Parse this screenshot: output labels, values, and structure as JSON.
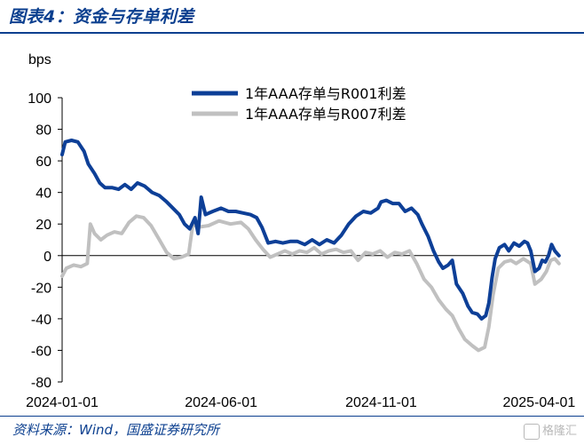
{
  "header": {
    "title": "图表4：资金与存单利差"
  },
  "footer": {
    "source": "资料来源：Wind，国盛证券研究所",
    "watermark": "格隆汇"
  },
  "chart_data": {
    "type": "line",
    "ylabel": "bps",
    "ylim": [
      -80,
      100
    ],
    "yticks": [
      -80,
      -60,
      -40,
      -20,
      0,
      20,
      40,
      60,
      80,
      100
    ],
    "yticks_labels": [
      "-80",
      "-60",
      "-40",
      "-20",
      "0",
      "20",
      "40",
      "60",
      "80",
      "100"
    ],
    "xticks": [
      "2024-01-01",
      "2024-06-01",
      "2024-11-01",
      "2025-04-01"
    ],
    "xlim": [
      "2024-01-01",
      "2025-04-10"
    ],
    "legend_position": "top-center",
    "series": [
      {
        "name": "1年AAA存单与R001利差",
        "color": "#0d3f97",
        "points": [
          [
            "2024-01-01",
            64
          ],
          [
            "2024-01-04",
            72
          ],
          [
            "2024-01-10",
            73
          ],
          [
            "2024-01-16",
            72
          ],
          [
            "2024-01-22",
            66
          ],
          [
            "2024-01-26",
            58
          ],
          [
            "2024-02-01",
            52
          ],
          [
            "2024-02-06",
            46
          ],
          [
            "2024-02-11",
            43
          ],
          [
            "2024-02-18",
            43
          ],
          [
            "2024-02-24",
            42
          ],
          [
            "2024-03-01",
            45
          ],
          [
            "2024-03-07",
            42
          ],
          [
            "2024-03-13",
            46
          ],
          [
            "2024-03-20",
            44
          ],
          [
            "2024-03-27",
            40
          ],
          [
            "2024-04-03",
            38
          ],
          [
            "2024-04-10",
            34
          ],
          [
            "2024-04-16",
            30
          ],
          [
            "2024-04-22",
            26
          ],
          [
            "2024-04-27",
            20
          ],
          [
            "2024-05-02",
            17
          ],
          [
            "2024-05-07",
            24
          ],
          [
            "2024-05-10",
            14
          ],
          [
            "2024-05-13",
            37
          ],
          [
            "2024-05-17",
            26
          ],
          [
            "2024-05-24",
            28
          ],
          [
            "2024-06-01",
            30
          ],
          [
            "2024-06-08",
            28
          ],
          [
            "2024-06-15",
            28
          ],
          [
            "2024-06-22",
            27
          ],
          [
            "2024-06-29",
            26
          ],
          [
            "2024-07-05",
            24
          ],
          [
            "2024-07-10",
            18
          ],
          [
            "2024-07-16",
            8
          ],
          [
            "2024-07-23",
            9
          ],
          [
            "2024-07-30",
            8
          ],
          [
            "2024-08-06",
            9
          ],
          [
            "2024-08-13",
            9
          ],
          [
            "2024-08-20",
            7
          ],
          [
            "2024-08-27",
            10
          ],
          [
            "2024-09-03",
            7
          ],
          [
            "2024-09-10",
            10
          ],
          [
            "2024-09-17",
            8
          ],
          [
            "2024-09-24",
            13
          ],
          [
            "2024-10-01",
            20
          ],
          [
            "2024-10-08",
            25
          ],
          [
            "2024-10-15",
            28
          ],
          [
            "2024-10-22",
            27
          ],
          [
            "2024-10-29",
            30
          ],
          [
            "2024-11-01",
            34
          ],
          [
            "2024-11-06",
            35
          ],
          [
            "2024-11-12",
            33
          ],
          [
            "2024-11-18",
            33
          ],
          [
            "2024-11-24",
            28
          ],
          [
            "2024-11-30",
            30
          ],
          [
            "2024-12-06",
            26
          ],
          [
            "2024-12-10",
            20
          ],
          [
            "2024-12-16",
            12
          ],
          [
            "2024-12-21",
            3
          ],
          [
            "2024-12-26",
            -4
          ],
          [
            "2024-12-30",
            -8
          ],
          [
            "2025-01-04",
            -6
          ],
          [
            "2025-01-08",
            -3
          ],
          [
            "2025-01-12",
            -18
          ],
          [
            "2025-01-18",
            -24
          ],
          [
            "2025-01-23",
            -32
          ],
          [
            "2025-01-27",
            -36
          ],
          [
            "2025-02-01",
            -37
          ],
          [
            "2025-02-05",
            -40
          ],
          [
            "2025-02-09",
            -38
          ],
          [
            "2025-02-12",
            -30
          ],
          [
            "2025-02-15",
            -14
          ],
          [
            "2025-02-18",
            -2
          ],
          [
            "2025-02-22",
            5
          ],
          [
            "2025-02-27",
            7
          ],
          [
            "2025-03-03",
            3
          ],
          [
            "2025-03-08",
            8
          ],
          [
            "2025-03-13",
            6
          ],
          [
            "2025-03-18",
            9
          ],
          [
            "2025-03-21",
            8
          ],
          [
            "2025-03-24",
            3
          ],
          [
            "2025-03-28",
            -10
          ],
          [
            "2025-04-01",
            -8
          ],
          [
            "2025-04-04",
            -3
          ],
          [
            "2025-04-07",
            -4
          ],
          [
            "2025-04-10",
            0
          ],
          [
            "2025-04-13",
            7
          ],
          [
            "2025-04-16",
            3
          ],
          [
            "2025-04-20",
            0
          ]
        ]
      },
      {
        "name": "1年AAA存单与R007利差",
        "color": "#c0c0c0",
        "points": [
          [
            "2024-01-01",
            -13
          ],
          [
            "2024-01-05",
            -8
          ],
          [
            "2024-01-12",
            -6
          ],
          [
            "2024-01-19",
            -7
          ],
          [
            "2024-01-25",
            -5
          ],
          [
            "2024-01-28",
            20
          ],
          [
            "2024-02-01",
            14
          ],
          [
            "2024-02-07",
            10
          ],
          [
            "2024-02-13",
            13
          ],
          [
            "2024-02-20",
            15
          ],
          [
            "2024-02-27",
            14
          ],
          [
            "2024-03-05",
            21
          ],
          [
            "2024-03-12",
            25
          ],
          [
            "2024-03-19",
            24
          ],
          [
            "2024-03-26",
            19
          ],
          [
            "2024-04-03",
            10
          ],
          [
            "2024-04-10",
            2
          ],
          [
            "2024-04-17",
            -2
          ],
          [
            "2024-04-24",
            -1
          ],
          [
            "2024-05-01",
            1
          ],
          [
            "2024-05-05",
            20
          ],
          [
            "2024-05-10",
            18
          ],
          [
            "2024-05-20",
            19
          ],
          [
            "2024-05-30",
            22
          ],
          [
            "2024-06-10",
            20
          ],
          [
            "2024-06-20",
            21
          ],
          [
            "2024-06-27",
            17
          ],
          [
            "2024-07-04",
            10
          ],
          [
            "2024-07-11",
            4
          ],
          [
            "2024-07-18",
            -1
          ],
          [
            "2024-07-25",
            1
          ],
          [
            "2024-08-01",
            3
          ],
          [
            "2024-08-08",
            1
          ],
          [
            "2024-08-15",
            3
          ],
          [
            "2024-08-22",
            2
          ],
          [
            "2024-08-29",
            5
          ],
          [
            "2024-09-05",
            1
          ],
          [
            "2024-09-12",
            3
          ],
          [
            "2024-09-19",
            4
          ],
          [
            "2024-09-26",
            2
          ],
          [
            "2024-10-03",
            3
          ],
          [
            "2024-10-10",
            -3
          ],
          [
            "2024-10-17",
            2
          ],
          [
            "2024-10-24",
            1
          ],
          [
            "2024-10-31",
            3
          ],
          [
            "2024-11-07",
            -1
          ],
          [
            "2024-11-14",
            2
          ],
          [
            "2024-11-21",
            1
          ],
          [
            "2024-11-28",
            3
          ],
          [
            "2024-12-05",
            -5
          ],
          [
            "2024-12-12",
            -15
          ],
          [
            "2024-12-19",
            -20
          ],
          [
            "2024-12-26",
            -28
          ],
          [
            "2025-01-02",
            -34
          ],
          [
            "2025-01-08",
            -38
          ],
          [
            "2025-01-14",
            -46
          ],
          [
            "2025-01-20",
            -53
          ],
          [
            "2025-01-27",
            -57
          ],
          [
            "2025-02-02",
            -60
          ],
          [
            "2025-02-08",
            -58
          ],
          [
            "2025-02-12",
            -45
          ],
          [
            "2025-02-16",
            -25
          ],
          [
            "2025-02-21",
            -8
          ],
          [
            "2025-02-27",
            -4
          ],
          [
            "2025-03-05",
            -3
          ],
          [
            "2025-03-10",
            -5
          ],
          [
            "2025-03-17",
            -2
          ],
          [
            "2025-03-24",
            -5
          ],
          [
            "2025-03-28",
            -18
          ],
          [
            "2025-04-03",
            -15
          ],
          [
            "2025-04-08",
            -10
          ],
          [
            "2025-04-12",
            -3
          ],
          [
            "2025-04-16",
            -2
          ],
          [
            "2025-04-20",
            -5
          ]
        ]
      }
    ]
  }
}
